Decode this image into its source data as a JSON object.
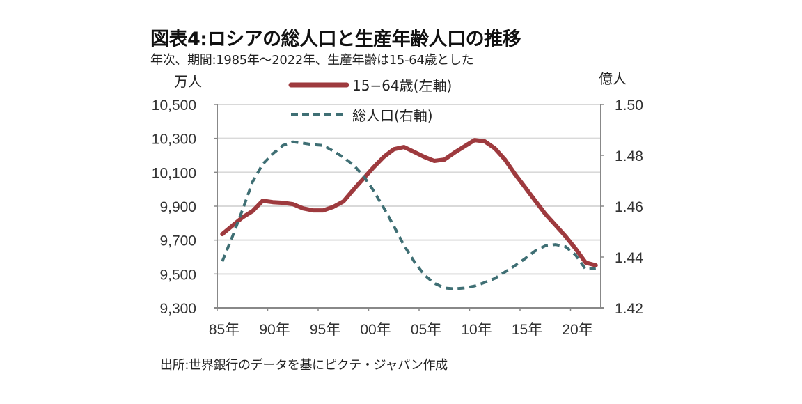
{
  "header": {
    "title": "図表4:ロシアの総人口と生産年齢人口の推移",
    "subtitle": "年次、期間:1985年～2022年、生産年齢は15-64歳とした"
  },
  "footer": {
    "source": "出所:世界銀行のデータを基にピクテ・ジャパン作成"
  },
  "colors": {
    "working_age": "#9e3a3e",
    "total": "#3f6f74",
    "grid": "#d9d9d9",
    "axis": "#888888"
  },
  "chart_data": {
    "type": "line",
    "title": "図表4:ロシアの総人口と生産年齢人口の推移",
    "subtitle": "年次、期間:1985年～2022年、生産年齢は15-64歳とした",
    "x": [
      1985,
      1986,
      1987,
      1988,
      1989,
      1990,
      1991,
      1992,
      1993,
      1994,
      1995,
      1996,
      1997,
      1998,
      1999,
      2000,
      2001,
      2002,
      2003,
      2004,
      2005,
      2006,
      2007,
      2008,
      2009,
      2010,
      2011,
      2012,
      2013,
      2014,
      2015,
      2016,
      2017,
      2018,
      2019,
      2020,
      2021,
      2022
    ],
    "xticks": [
      "85年",
      "90年",
      "95年",
      "00年",
      "05年",
      "10年",
      "15年",
      "20年"
    ],
    "y_left": {
      "label": "万人",
      "ylim": [
        9300,
        10500
      ],
      "ticks": [
        "10,500",
        "10,300",
        "10,100",
        "9,900",
        "9,700",
        "9,500",
        "9,300"
      ]
    },
    "y_right": {
      "label": "億人",
      "ylim": [
        1.42,
        1.5
      ],
      "ticks": [
        "1.50",
        "1.48",
        "1.46",
        "1.44",
        "1.42"
      ]
    },
    "grid": true,
    "legend_position": "top-center",
    "series": [
      {
        "name": "15−64歳(左軸)",
        "axis": "left",
        "style": "solid",
        "values": [
          9735,
          9785,
          9834,
          9871,
          9932,
          9924,
          9920,
          9912,
          9887,
          9875,
          9875,
          9896,
          9928,
          9998,
          10064,
          10130,
          10191,
          10236,
          10249,
          10220,
          10191,
          10167,
          10175,
          10216,
          10253,
          10290,
          10282,
          10241,
          10175,
          10089,
          10011,
          9932,
          9854,
          9789,
          9723,
          9649,
          9567,
          9551
        ]
      },
      {
        "name": "総人口(右軸)",
        "axis": "right",
        "style": "dashed",
        "values": [
          1.4383,
          1.448,
          1.4585,
          1.4696,
          1.4765,
          1.4806,
          1.4839,
          1.4853,
          1.4848,
          1.4842,
          1.4839,
          1.4817,
          1.4792,
          1.4762,
          1.4718,
          1.466,
          1.4593,
          1.4521,
          1.4446,
          1.4383,
          1.433,
          1.4297,
          1.4278,
          1.4275,
          1.4278,
          1.4286,
          1.43,
          1.4316,
          1.4341,
          1.4366,
          1.4394,
          1.4424,
          1.4444,
          1.4449,
          1.4441,
          1.4408,
          1.4352,
          1.4355
        ]
      }
    ]
  }
}
